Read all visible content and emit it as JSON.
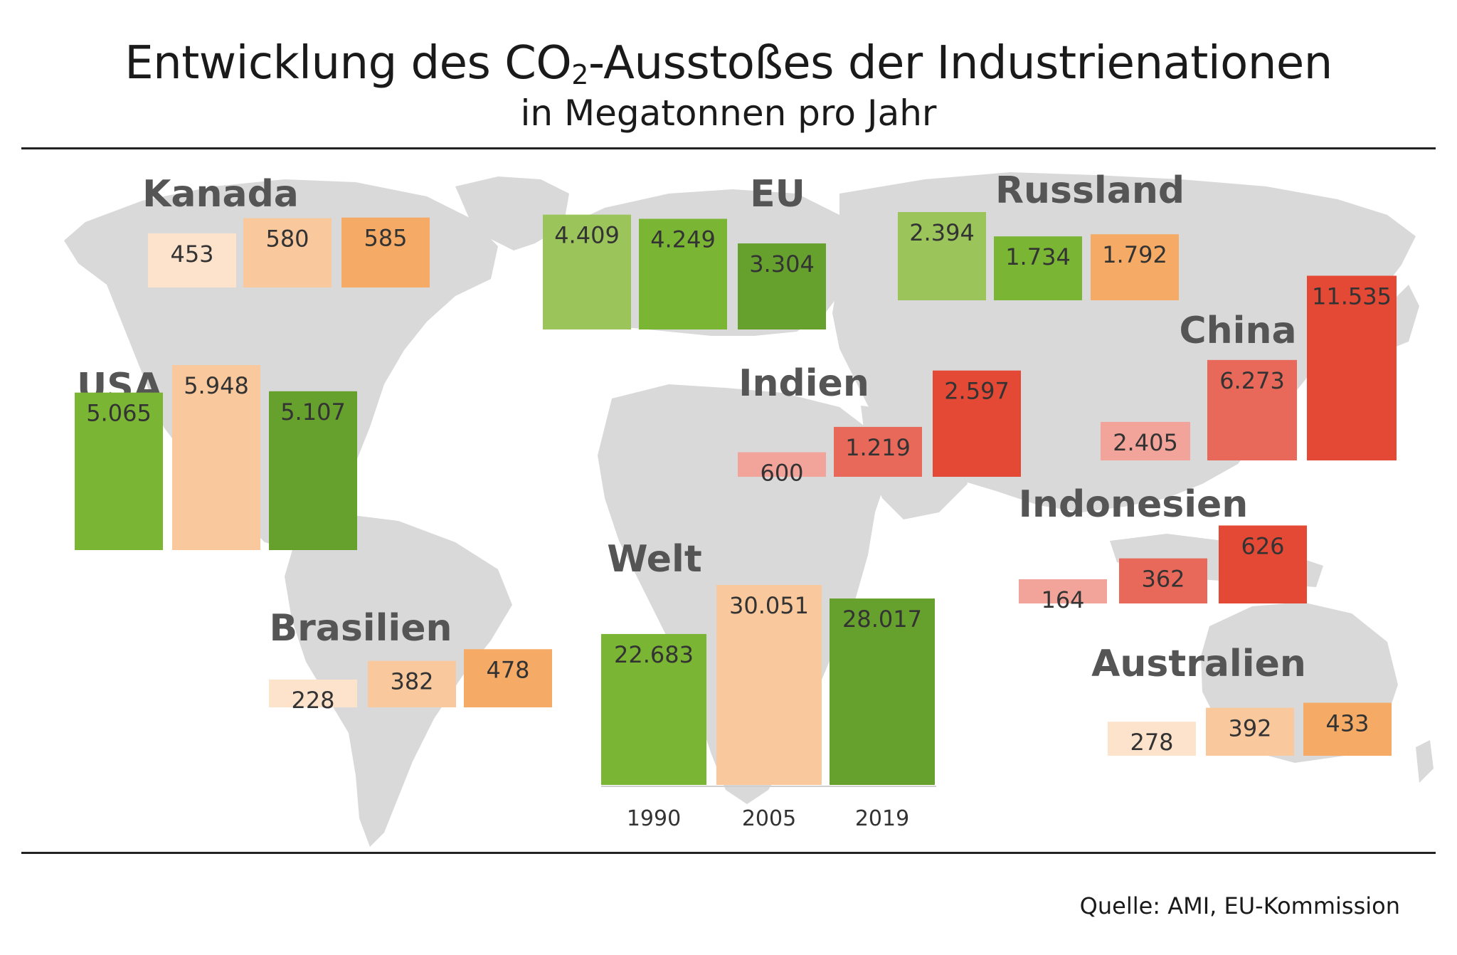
{
  "title_main": "Entwicklung des CO",
  "title_sub": "2",
  "title_rest": "-Ausstoßes der Industrienationen",
  "subtitle": "in Megatonnen pro Jahr",
  "source": "Quelle: AMI, EU-Kommission",
  "chart_data": {
    "type": "bar",
    "categories": [
      "1990",
      "2005",
      "2019"
    ],
    "map_color": "#d9d9d9",
    "regions": [
      {
        "id": "kanada",
        "name": "Kanada",
        "values": [
          453,
          580,
          585
        ],
        "labels": [
          "453",
          "580",
          "585"
        ],
        "colors": [
          "#fde2cc",
          "#f9c89c",
          "#f5ab66"
        ]
      },
      {
        "id": "eu",
        "name": "EU",
        "values": [
          4409,
          4249,
          3304
        ],
        "labels": [
          "4.409",
          "4.249",
          "3.304"
        ],
        "colors": [
          "#9bc45a",
          "#7ab534",
          "#66a02d"
        ]
      },
      {
        "id": "russland",
        "name": "Russland",
        "values": [
          2394,
          1734,
          1792
        ],
        "labels": [
          "2.394",
          "1.734",
          "1.792"
        ],
        "colors": [
          "#9bc45a",
          "#7ab534",
          "#f5ab66"
        ]
      },
      {
        "id": "usa",
        "name": "USA",
        "values": [
          5065,
          5948,
          5107
        ],
        "labels": [
          "5.065",
          "5.948",
          "5.107"
        ],
        "colors": [
          "#7ab534",
          "#f9c89c",
          "#66a02d"
        ]
      },
      {
        "id": "indien",
        "name": "Indien",
        "values": [
          600,
          1219,
          2597
        ],
        "labels": [
          "600",
          "1.219",
          "2.597"
        ],
        "colors": [
          "#f2a49a",
          "#e8685a",
          "#e34934"
        ]
      },
      {
        "id": "china",
        "name": "China",
        "values": [
          2405,
          6273,
          11535
        ],
        "labels": [
          "2.405",
          "6.273",
          "11.535"
        ],
        "colors": [
          "#f2a49a",
          "#e8685a",
          "#e34934"
        ]
      },
      {
        "id": "indonesien",
        "name": "Indonesien",
        "values": [
          164,
          362,
          626
        ],
        "labels": [
          "164",
          "362",
          "626"
        ],
        "colors": [
          "#f2a49a",
          "#e8685a",
          "#e34934"
        ]
      },
      {
        "id": "brasilien",
        "name": "Brasilien",
        "values": [
          228,
          382,
          478
        ],
        "labels": [
          "228",
          "382",
          "478"
        ],
        "colors": [
          "#fde2cc",
          "#f9c89c",
          "#f5ab66"
        ]
      },
      {
        "id": "welt",
        "name": "Welt",
        "values": [
          22683,
          30051,
          28017
        ],
        "labels": [
          "22.683",
          "30.051",
          "28.017"
        ],
        "colors": [
          "#7ab534",
          "#f9c89c",
          "#66a02d"
        ],
        "show_year_labels": true
      },
      {
        "id": "australien",
        "name": "Australien",
        "values": [
          278,
          392,
          433
        ],
        "labels": [
          "278",
          "392",
          "433"
        ],
        "colors": [
          "#fde2cc",
          "#f9c89c",
          "#f5ab66"
        ]
      }
    ]
  }
}
